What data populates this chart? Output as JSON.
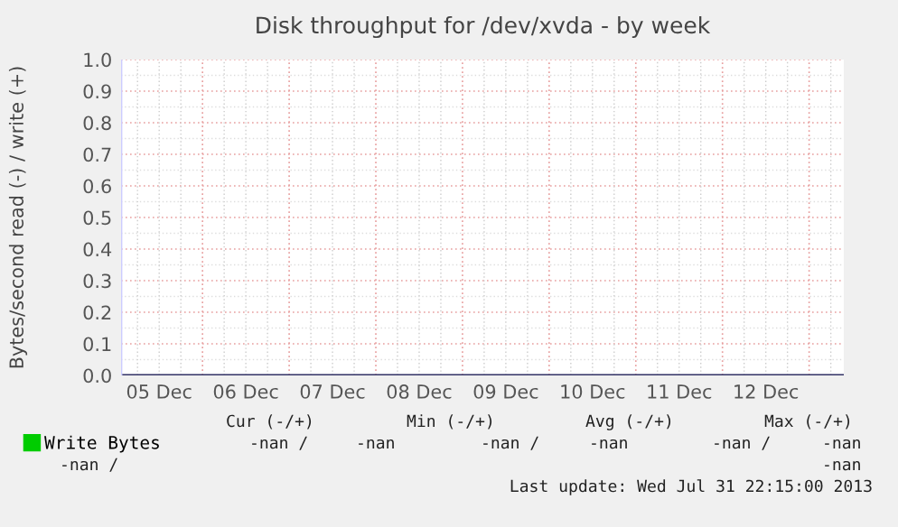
{
  "chart_data": {
    "type": "line",
    "title": "Disk throughput for /dev/xvda - by week",
    "ylabel": "Bytes/second read (-) / write (+)",
    "categories": [
      "05 Dec",
      "06 Dec",
      "07 Dec",
      "08 Dec",
      "09 Dec",
      "10 Dec",
      "11 Dec",
      "12 Dec"
    ],
    "series": [
      {
        "name": "Write Bytes",
        "color": "#00cc00",
        "values": [
          null,
          null,
          null,
          null,
          null,
          null,
          null,
          null
        ]
      }
    ],
    "ylim": [
      0,
      1.0
    ],
    "yticks": [
      {
        "value": 0,
        "label": "0.0"
      },
      {
        "value": 0.1,
        "label": "0.1"
      },
      {
        "value": 0.2,
        "label": "0.2"
      },
      {
        "value": 0.3,
        "label": "0.3"
      },
      {
        "value": 0.4,
        "label": "0.4"
      },
      {
        "value": 0.5,
        "label": "0.5"
      },
      {
        "value": 0.6,
        "label": "0.6"
      },
      {
        "value": 0.7,
        "label": "0.7"
      },
      {
        "value": 0.8,
        "label": "0.8"
      },
      {
        "value": 0.9,
        "label": "0.9"
      },
      {
        "value": 1.0,
        "label": "1.0"
      }
    ],
    "grid": true,
    "legend": "bottom",
    "annotations": [
      "Cur (-/+)",
      "Min (-/+)",
      "Avg (-/+)",
      "Max (-/+)",
      "-nan /",
      "-nan",
      "-nan /",
      "-nan",
      "-nan /",
      "-nan",
      "-nan /",
      "-nan",
      "Last update: Wed Jul 31 22:15:00 2013"
    ]
  }
}
